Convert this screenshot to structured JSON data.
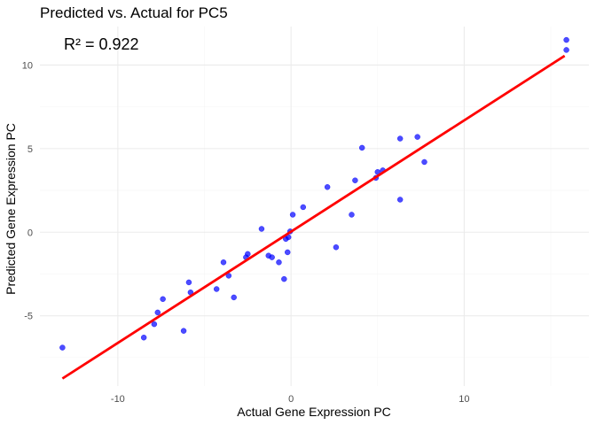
{
  "chart_data": {
    "type": "scatter",
    "title": "Predicted vs. Actual for PC5",
    "xlabel": "Actual Gene Expression PC",
    "ylabel": "Predicted Gene Expression PC",
    "annotation": "R² = 0.922",
    "xlim": [
      -14.5,
      17.2
    ],
    "ylim": [
      -9.2,
      12.3
    ],
    "x_ticks": [
      -10,
      0,
      10
    ],
    "x_tick_labels": [
      "-10",
      "0",
      "10"
    ],
    "y_ticks": [
      -5,
      0,
      5,
      10
    ],
    "y_tick_labels": [
      "-5",
      "0",
      "5",
      "10"
    ],
    "x_minor_ticks": [
      -5,
      5,
      15
    ],
    "y_minor_ticks": [
      -7.5,
      -2.5,
      2.5,
      7.5
    ],
    "grid": true,
    "point_color": "#0000FF",
    "line_color": "#FF0000",
    "points": [
      {
        "x": -13.2,
        "y": -6.9
      },
      {
        "x": -8.5,
        "y": -6.3
      },
      {
        "x": -7.9,
        "y": -5.5
      },
      {
        "x": -7.7,
        "y": -4.8
      },
      {
        "x": -7.4,
        "y": -4.0
      },
      {
        "x": -6.2,
        "y": -5.9
      },
      {
        "x": -5.9,
        "y": -3.0
      },
      {
        "x": -5.8,
        "y": -3.6
      },
      {
        "x": -4.3,
        "y": -3.4
      },
      {
        "x": -3.9,
        "y": -1.8
      },
      {
        "x": -3.6,
        "y": -2.6
      },
      {
        "x": -3.3,
        "y": -3.9
      },
      {
        "x": -2.6,
        "y": -1.5
      },
      {
        "x": -2.5,
        "y": -1.3
      },
      {
        "x": -1.7,
        "y": 0.2
      },
      {
        "x": -1.3,
        "y": -1.4
      },
      {
        "x": -1.1,
        "y": -1.5
      },
      {
        "x": -0.7,
        "y": -1.8
      },
      {
        "x": -0.4,
        "y": -2.8
      },
      {
        "x": -0.3,
        "y": -0.4
      },
      {
        "x": -0.2,
        "y": -1.2
      },
      {
        "x": -0.15,
        "y": -0.3
      },
      {
        "x": -0.05,
        "y": 0.05
      },
      {
        "x": 0.1,
        "y": 1.05
      },
      {
        "x": 0.7,
        "y": 1.5
      },
      {
        "x": 2.1,
        "y": 2.7
      },
      {
        "x": 2.6,
        "y": -0.9
      },
      {
        "x": 3.5,
        "y": 1.05
      },
      {
        "x": 3.7,
        "y": 3.1
      },
      {
        "x": 4.1,
        "y": 5.05
      },
      {
        "x": 4.9,
        "y": 3.25
      },
      {
        "x": 5.0,
        "y": 3.6
      },
      {
        "x": 5.3,
        "y": 3.7
      },
      {
        "x": 6.3,
        "y": 5.6
      },
      {
        "x": 6.3,
        "y": 1.95
      },
      {
        "x": 7.3,
        "y": 5.7
      },
      {
        "x": 7.7,
        "y": 4.2
      },
      {
        "x": 15.9,
        "y": 11.5
      },
      {
        "x": 15.9,
        "y": 10.9
      }
    ],
    "fit_line": {
      "x": [
        -13.2,
        15.8
      ],
      "y": [
        -8.75,
        10.55
      ]
    }
  }
}
